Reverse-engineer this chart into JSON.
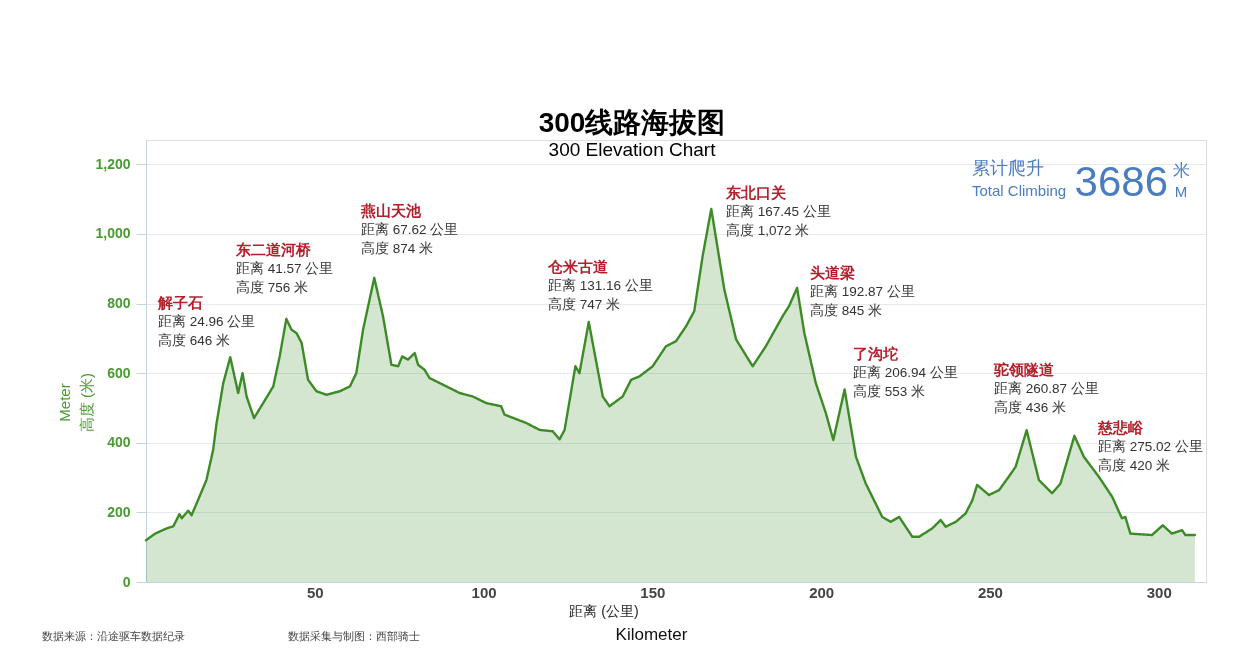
{
  "chart_data": {
    "type": "area",
    "title": "300线路海拔图",
    "subtitle": "300 Elevation Chart",
    "xlabel": "Kilometer",
    "ylabel": "Meter\n高度 (米)",
    "x": [
      0,
      2.7,
      6.1,
      8.1,
      9.9,
      10.6,
      12.5,
      13.5,
      15.0,
      17.9,
      19.9,
      20.9,
      22.9,
      24.96,
      27.3,
      28.6,
      29.8,
      32.0,
      34.7,
      37.7,
      39.6,
      41.57,
      43.1,
      44.6,
      46.1,
      48.0,
      50.5,
      53.5,
      57.4,
      60.4,
      62.3,
      64.3,
      67.62,
      70.2,
      72.7,
      74.7,
      75.9,
      77.6,
      79.6,
      80.6,
      82.5,
      84.0,
      89.0,
      92.9,
      96.8,
      100.8,
      105.2,
      106.2,
      112.6,
      116.6,
      120.5,
      122.5,
      124.0,
      127.2,
      128.4,
      131.16,
      135.3,
      137.3,
      141.2,
      143.7,
      146.2,
      150.1,
      154.0,
      157.0,
      160.0,
      162.4,
      164.9,
      167.45,
      171.3,
      174.8,
      179.7,
      183.6,
      188.6,
      190.5,
      192.87,
      195.0,
      198.4,
      201.4,
      203.6,
      206.94,
      210.3,
      213.2,
      218.1,
      220.6,
      223.1,
      227.0,
      229.0,
      232.9,
      235.4,
      236.9,
      239.9,
      242.8,
      244.8,
      246.2,
      249.7,
      252.7,
      255.6,
      257.6,
      260.87,
      264.5,
      268.4,
      270.9,
      275.02,
      277.8,
      282.2,
      286.2,
      289.1,
      290.1,
      291.6,
      298.0,
      301.2,
      303.9,
      306.9,
      307.9,
      310.7
    ],
    "series": [
      {
        "color": "#3d8b26",
        "values": [
          120,
          139,
          154,
          160,
          195,
          183,
          205,
          192,
          226,
          293,
          380,
          456,
          572,
          646,
          543,
          600,
          533,
          471,
          514,
          562,
          648,
          756,
          725,
          715,
          687,
          581,
          548,
          538,
          548,
          562,
          600,
          725,
          874,
          764,
          624,
          620,
          648,
          639,
          658,
          624,
          610,
          586,
          562,
          543,
          533,
          514,
          505,
          481,
          457,
          437,
          433,
          410,
          437,
          620,
          600,
          747,
          533,
          505,
          533,
          581,
          591,
          620,
          677,
          692,
          735,
          778,
          937,
          1072,
          841,
          697,
          620,
          677,
          764,
          793,
          845,
          716,
          572,
          485,
          408,
          553,
          360,
          283,
          187,
          173,
          187,
          130,
          130,
          154,
          178,
          159,
          173,
          197,
          235,
          279,
          250,
          264,
          303,
          331,
          436,
          293,
          255,
          283,
          420,
          360,
          303,
          245,
          183,
          187,
          139,
          135,
          163,
          139,
          149,
          135,
          135
        ]
      }
    ],
    "xlim": [
      0,
      314
    ],
    "ylim": [
      0,
      1270
    ],
    "xticks": [
      50,
      100,
      150,
      200,
      250,
      300
    ],
    "yticks": [
      0,
      200,
      400,
      600,
      800,
      {
        "value": 1000,
        "label": "1,000"
      },
      {
        "value": 1200,
        "label": "1,200"
      }
    ],
    "grid": "y",
    "annotations": [
      "解子石",
      "距离 24.96 公里",
      "高度 646 米",
      "东二道河桥",
      "距离 41.57 公里",
      "高度 756 米",
      "燕山天池",
      "距离 67.62 公里",
      "高度 874 米",
      "仓米古道",
      "距离 131.16 公里",
      "高度 747 米",
      "东北口关",
      "距离 167.45 公里",
      "高度 1,072 米",
      "头道梁",
      "距离 192.87 公里",
      "高度 845 米",
      "了沟坨",
      "距离 206.94 公里",
      "高度 553 米",
      "驼领隧道",
      "距离 260.87 公里",
      "高度 436 米",
      "慈悲峪",
      "距离 275.02 公里",
      "高度 420 米",
      "累计爬升",
      "Total Climbing",
      "3686",
      "米",
      "M",
      "距离 (公里)",
      "数据来源：沿途驱车数据纪录",
      "数据采集与制图：西部骑士"
    ]
  }
}
